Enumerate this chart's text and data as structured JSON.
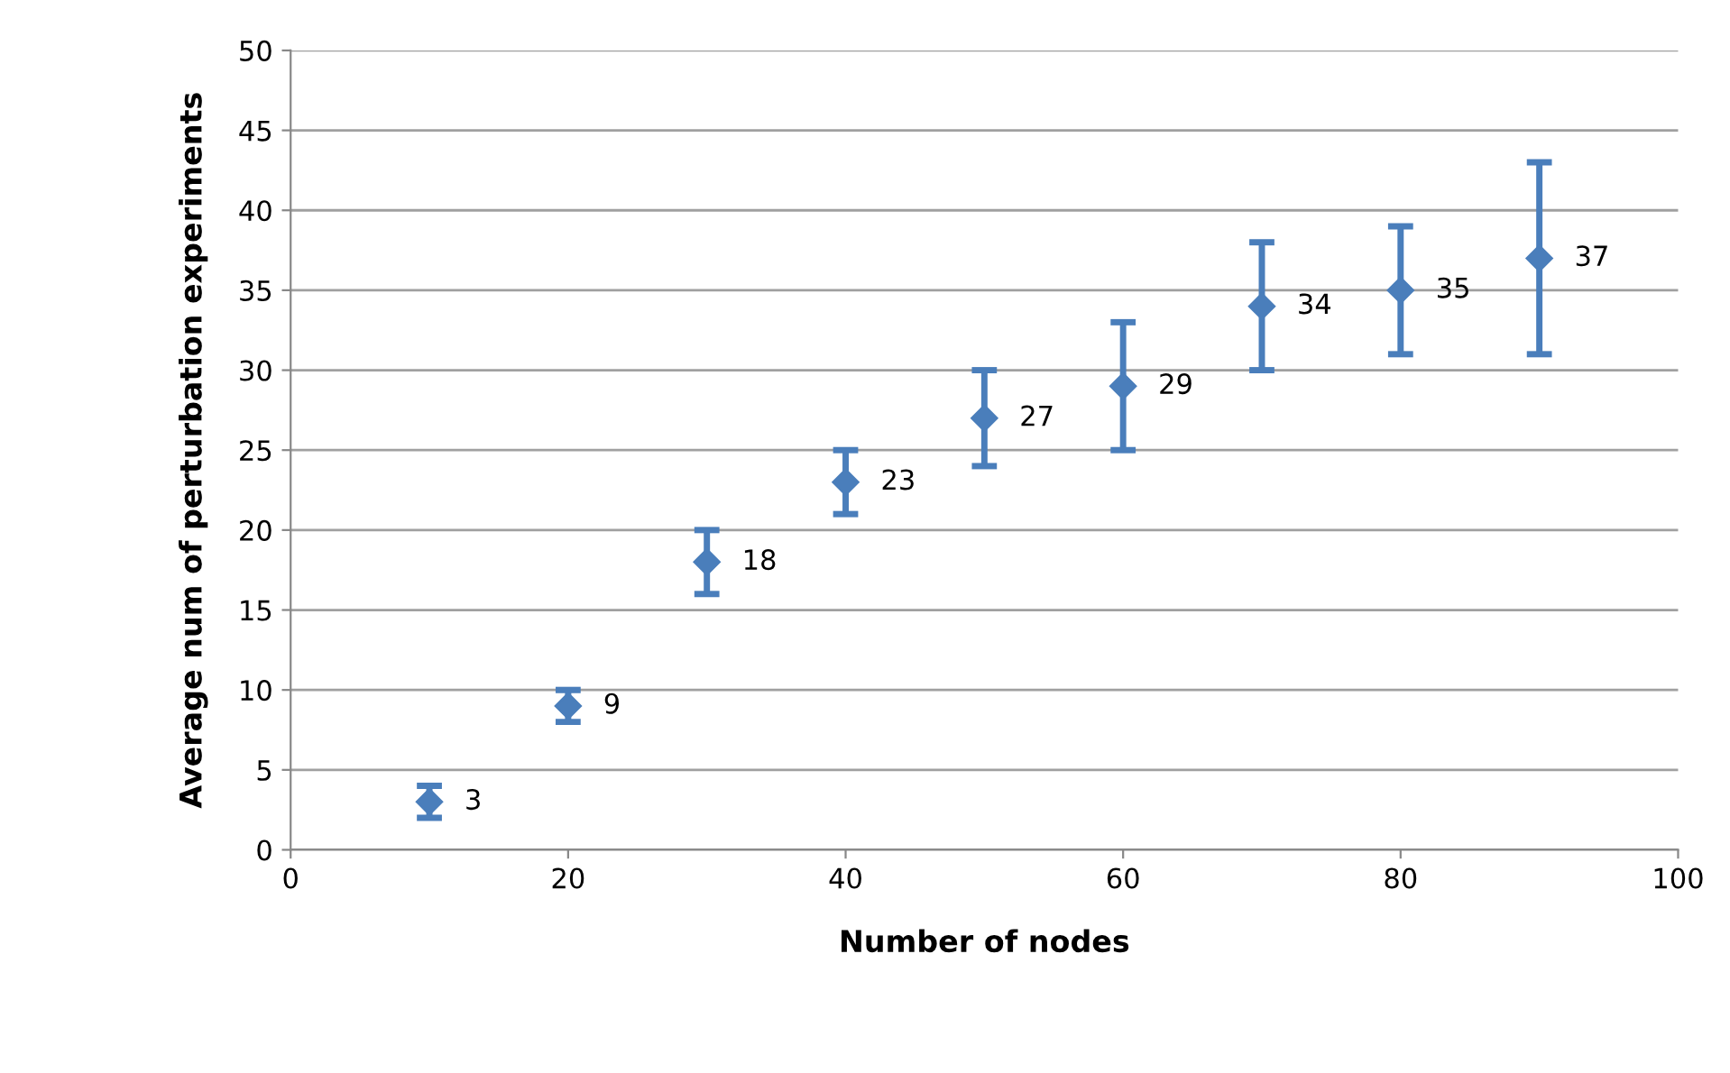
{
  "chart_data": {
    "type": "scatter",
    "xlabel": "Number of nodes",
    "ylabel": "Average num of perturbation experiments",
    "x": [
      10,
      20,
      30,
      40,
      50,
      60,
      70,
      80,
      90
    ],
    "series": [
      {
        "color": "#4a7ebb",
        "values": [
          3,
          9,
          18,
          23,
          27,
          29,
          34,
          35,
          37
        ],
        "errors": [
          1,
          1,
          2,
          2,
          3,
          4,
          4,
          4,
          6
        ]
      }
    ],
    "xlim": [
      0,
      100
    ],
    "xticks": [
      0,
      20,
      40,
      60,
      80,
      100
    ],
    "ylim": [
      0,
      50
    ],
    "yticks": [
      0,
      5,
      10,
      15,
      20,
      25,
      30,
      35,
      40,
      45,
      50
    ],
    "grid": "y",
    "marker": "diamond",
    "data_labels": true
  }
}
